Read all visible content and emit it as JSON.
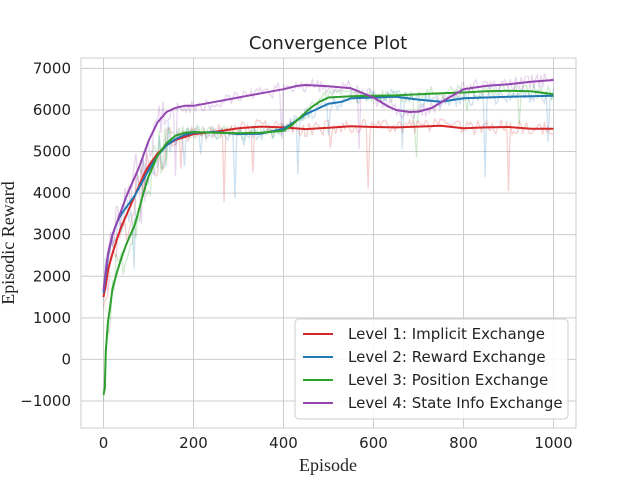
{
  "chart_data": {
    "type": "line",
    "title": "Convergence Plot",
    "xlabel": "Episode",
    "ylabel": "Episodic Reward",
    "xlim": [
      -50,
      1050
    ],
    "ylim": [
      -1650,
      7250
    ],
    "xticks": [
      0,
      200,
      400,
      600,
      800,
      1000
    ],
    "yticks": [
      -1000,
      0,
      1000,
      2000,
      3000,
      4000,
      5000,
      6000,
      7000
    ],
    "grid": true,
    "legend_position": "lower-right",
    "series": [
      {
        "name": "Level 1: Implicit Exchange",
        "color": "#d62728",
        "x": [
          0,
          5,
          10,
          20,
          30,
          40,
          50,
          60,
          70,
          80,
          90,
          100,
          120,
          140,
          160,
          180,
          200,
          250,
          300,
          350,
          400,
          450,
          500,
          550,
          600,
          650,
          700,
          750,
          800,
          850,
          900,
          950,
          1000
        ],
        "y": [
          1500,
          1800,
          2150,
          2550,
          2900,
          3200,
          3450,
          3700,
          3950,
          4200,
          4450,
          4650,
          4950,
          5150,
          5280,
          5350,
          5420,
          5480,
          5560,
          5600,
          5580,
          5540,
          5570,
          5610,
          5590,
          5580,
          5600,
          5620,
          5560,
          5580,
          5590,
          5550,
          5550
        ]
      },
      {
        "name": "Level 2: Reward Exchange",
        "color": "#1f77b4",
        "x": [
          0,
          5,
          10,
          20,
          30,
          40,
          50,
          60,
          70,
          80,
          90,
          100,
          120,
          140,
          160,
          180,
          200,
          250,
          300,
          350,
          400,
          430,
          450,
          480,
          500,
          530,
          550,
          600,
          650,
          700,
          750,
          800,
          850,
          900,
          950,
          1000
        ],
        "y": [
          1600,
          2050,
          2500,
          3000,
          3300,
          3500,
          3650,
          3800,
          3950,
          4150,
          4350,
          4550,
          4900,
          5150,
          5300,
          5400,
          5450,
          5470,
          5420,
          5430,
          5550,
          5750,
          5900,
          6050,
          6150,
          6200,
          6280,
          6300,
          6320,
          6250,
          6200,
          6280,
          6300,
          6320,
          6330,
          6340
        ]
      },
      {
        "name": "Level 3: Position Exchange",
        "color": "#2ca02c",
        "x": [
          0,
          3,
          5,
          10,
          15,
          20,
          30,
          40,
          50,
          60,
          70,
          80,
          90,
          100,
          120,
          140,
          160,
          180,
          200,
          250,
          300,
          350,
          400,
          420,
          440,
          460,
          480,
          500,
          550,
          600,
          650,
          700,
          750,
          800,
          850,
          900,
          950,
          1000
        ],
        "y": [
          -850,
          -700,
          200,
          900,
          1300,
          1700,
          2100,
          2450,
          2750,
          3000,
          3250,
          3650,
          4050,
          4400,
          4900,
          5200,
          5380,
          5450,
          5470,
          5450,
          5440,
          5450,
          5500,
          5650,
          5850,
          6050,
          6200,
          6300,
          6330,
          6340,
          6350,
          6380,
          6400,
          6420,
          6450,
          6460,
          6450,
          6380
        ]
      },
      {
        "name": "Level 4: State Info Exchange",
        "color": "#9446b0",
        "x": [
          0,
          5,
          10,
          20,
          30,
          40,
          50,
          60,
          70,
          80,
          90,
          100,
          120,
          140,
          160,
          180,
          200,
          250,
          300,
          350,
          400,
          430,
          450,
          500,
          550,
          600,
          630,
          650,
          680,
          700,
          730,
          760,
          800,
          850,
          900,
          950,
          1000
        ],
        "y": [
          1650,
          2150,
          2550,
          3000,
          3300,
          3600,
          3900,
          4150,
          4400,
          4650,
          4950,
          5250,
          5700,
          5950,
          6050,
          6100,
          6100,
          6200,
          6300,
          6400,
          6500,
          6580,
          6600,
          6570,
          6520,
          6300,
          6100,
          6000,
          5950,
          5960,
          6050,
          6250,
          6500,
          6580,
          6620,
          6680,
          6720
        ]
      }
    ]
  }
}
